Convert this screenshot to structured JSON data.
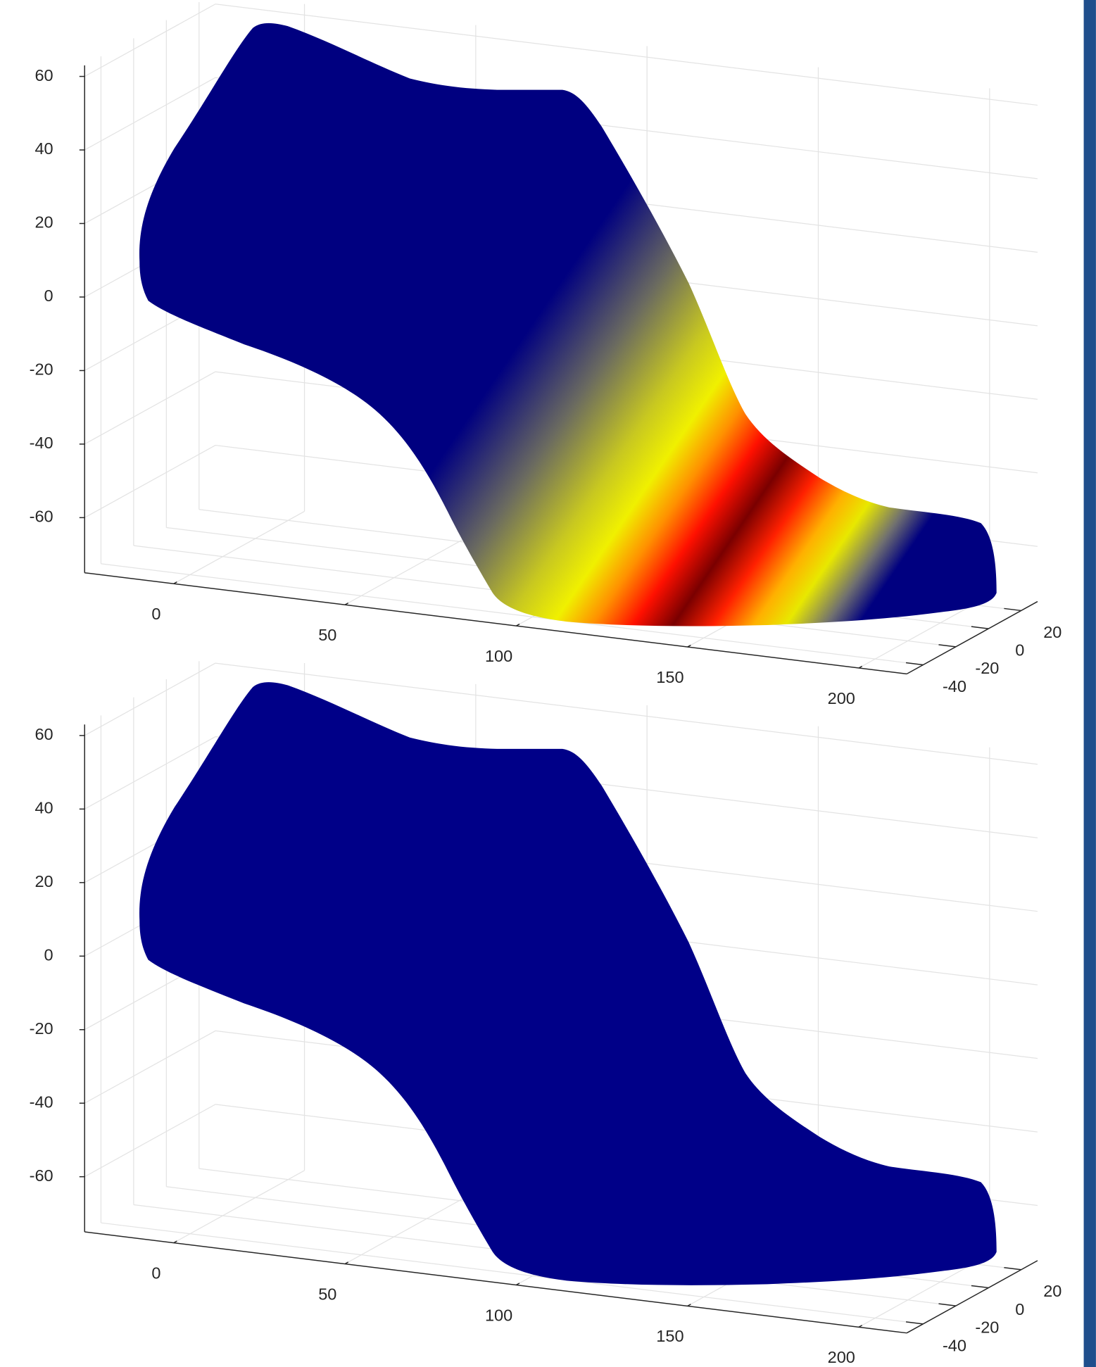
{
  "chart_data": [
    {
      "type": "surface3d",
      "grid": true,
      "xlim": [
        -26,
        214
      ],
      "ylim": [
        -50,
        30
      ],
      "zlim": [
        -75,
        63
      ],
      "xticks": [
        0,
        50,
        100,
        150,
        200
      ],
      "yticks": [
        -40,
        -20,
        0,
        20
      ],
      "zticks": [
        -60,
        -40,
        -20,
        0,
        20,
        40,
        60
      ]
    },
    {
      "type": "surface3d",
      "grid": true,
      "xlim": [
        -26,
        214
      ],
      "ylim": [
        -50,
        30
      ],
      "zlim": [
        -75,
        63
      ],
      "xticks": [
        0,
        50,
        100,
        150,
        200
      ],
      "yticks": [
        -40,
        -20,
        0,
        20
      ],
      "zticks": [
        -60,
        -40,
        -20,
        0,
        20,
        40,
        60
      ]
    }
  ]
}
